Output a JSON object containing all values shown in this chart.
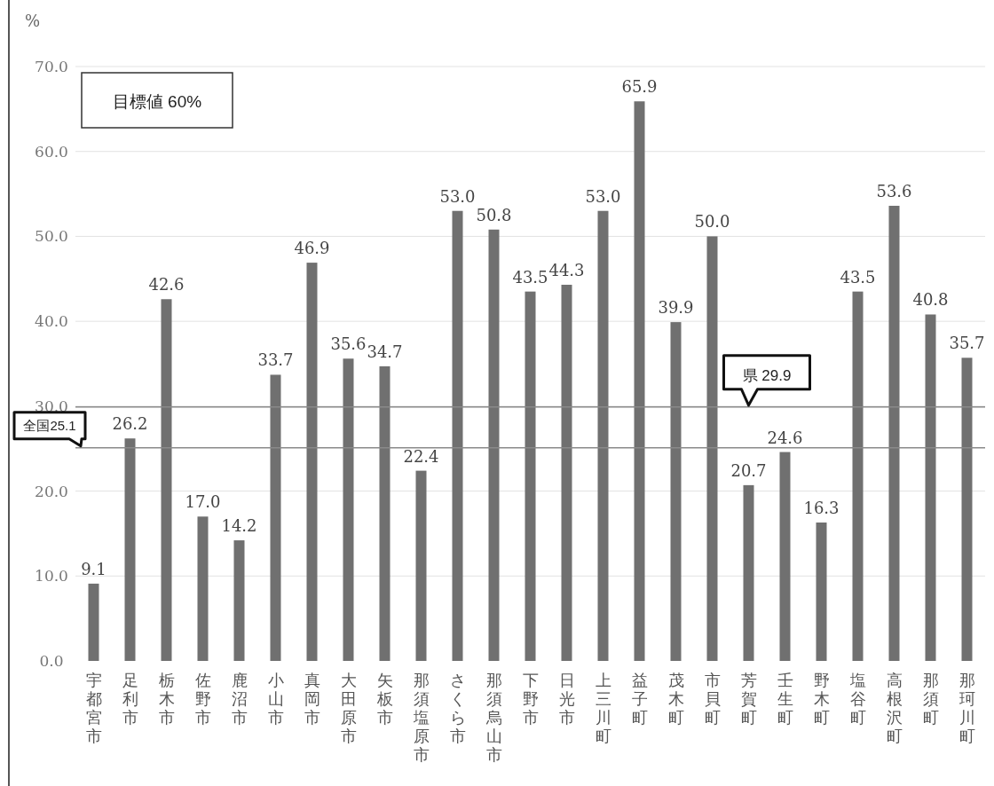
{
  "chart_data": {
    "type": "bar",
    "ylabel": "%",
    "categories": [
      "宇都宮市",
      "足利市",
      "栃木市",
      "佐野市",
      "鹿沼市",
      "小山市",
      "真岡市",
      "大田原市",
      "矢板市",
      "那須塩原市",
      "さくら市",
      "那須烏山市",
      "下野市",
      "日光市",
      "上三川町",
      "益子町",
      "茂木町",
      "市貝町",
      "芳賀町",
      "壬生町",
      "野木町",
      "塩谷町",
      "高根沢町",
      "那須町",
      "那珂川町"
    ],
    "values": [
      9.1,
      26.2,
      42.6,
      17.0,
      14.2,
      33.7,
      46.9,
      35.6,
      34.7,
      22.4,
      53.0,
      50.8,
      43.5,
      44.3,
      53.0,
      65.9,
      39.9,
      50.0,
      20.7,
      24.6,
      16.3,
      43.5,
      53.6,
      40.8,
      35.7
    ],
    "color": "#707070",
    "value_labels": [
      "9.1",
      "26.2",
      "42.6",
      "17.0",
      "14.2",
      "33.7",
      "46.9",
      "35.6",
      "34.7",
      "22.4",
      "53.0",
      "50.8",
      "43.5",
      "44.3",
      "53.0",
      "65.9",
      "39.9",
      "50.0",
      "20.7",
      "24.6",
      "16.3",
      "43.5",
      "53.6",
      "40.8",
      "35.7"
    ],
    "ylim": [
      0,
      70
    ],
    "yticks": [
      {
        "value": 0,
        "label": "0.0"
      },
      {
        "value": 10,
        "label": "10.0"
      },
      {
        "value": 20,
        "label": "20.0"
      },
      {
        "value": 30,
        "label": "30.0"
      },
      {
        "value": 40,
        "label": "40.0"
      },
      {
        "value": 50,
        "label": "50.0"
      },
      {
        "value": 60,
        "label": "60.0"
      },
      {
        "value": 70,
        "label": "70.0"
      }
    ],
    "grid": "y",
    "ref_lines": [
      {
        "axis": "y",
        "value": 25.1,
        "label": "全国25.1",
        "color": "#8a8a8a"
      },
      {
        "axis": "y",
        "value": 29.9,
        "label": "県 29.9",
        "color": "#8a8a8a"
      }
    ],
    "annotations": [
      "目標値 60%"
    ]
  }
}
